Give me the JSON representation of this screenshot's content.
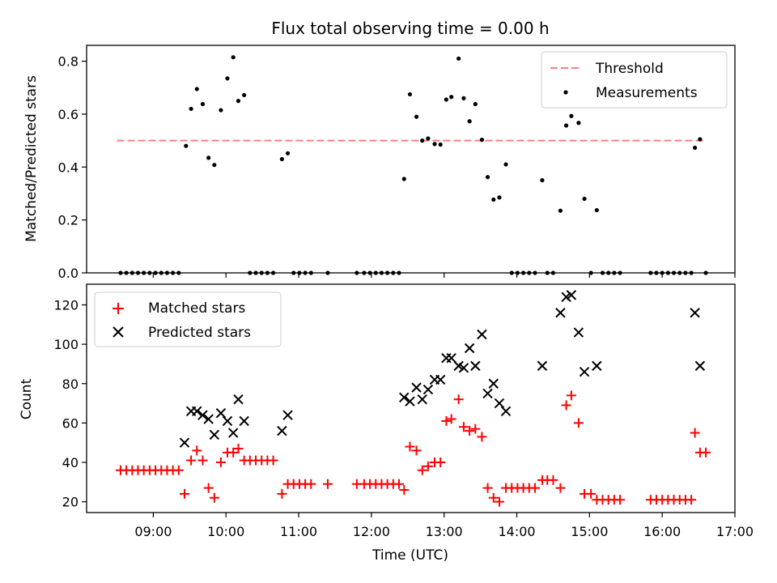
{
  "chart_data": {
    "type": "scatter",
    "title": "Flux total observing time = 0.00 h",
    "xlabel": "Time (UTC)",
    "xlim_hours": [
      8.083,
      17.0
    ],
    "xticks": [
      {
        "v": 9,
        "label": "09:00"
      },
      {
        "v": 10,
        "label": "10:00"
      },
      {
        "v": 11,
        "label": "11:00"
      },
      {
        "v": 12,
        "label": "12:00"
      },
      {
        "v": 13,
        "label": "13:00"
      },
      {
        "v": 14,
        "label": "14:00"
      },
      {
        "v": 15,
        "label": "15:00"
      },
      {
        "v": 16,
        "label": "16:00"
      },
      {
        "v": 17,
        "label": "17:00"
      }
    ],
    "top": {
      "ylabel": "Matched/Predicted stars",
      "ylim": [
        0,
        0.86
      ],
      "yticks": [
        {
          "v": 0.0,
          "label": "0.0"
        },
        {
          "v": 0.2,
          "label": "0.2"
        },
        {
          "v": 0.4,
          "label": "0.4"
        },
        {
          "v": 0.6,
          "label": "0.6"
        },
        {
          "v": 0.8,
          "label": "0.8"
        }
      ],
      "threshold": {
        "name": "Threshold",
        "y": 0.5,
        "x": [
          8.5,
          16.6
        ],
        "color": "#ff7f7f"
      },
      "measurements_name": "Measurements",
      "measurements": [
        [
          8.55,
          0
        ],
        [
          8.63,
          0
        ],
        [
          8.71,
          0
        ],
        [
          8.79,
          0
        ],
        [
          8.87,
          0
        ],
        [
          8.95,
          0
        ],
        [
          9.03,
          0
        ],
        [
          9.11,
          0
        ],
        [
          9.19,
          0
        ],
        [
          9.27,
          0
        ],
        [
          9.35,
          0
        ],
        [
          9.45,
          0.48
        ],
        [
          9.52,
          0.62
        ],
        [
          9.6,
          0.695
        ],
        [
          9.68,
          0.638
        ],
        [
          9.76,
          0.435
        ],
        [
          9.84,
          0.408
        ],
        [
          9.93,
          0.615
        ],
        [
          10.02,
          0.735
        ],
        [
          10.1,
          0.815
        ],
        [
          10.17,
          0.65
        ],
        [
          10.25,
          0.672
        ],
        [
          10.33,
          0
        ],
        [
          10.41,
          0
        ],
        [
          10.49,
          0
        ],
        [
          10.57,
          0
        ],
        [
          10.65,
          0
        ],
        [
          10.77,
          0.43
        ],
        [
          10.85,
          0.452
        ],
        [
          10.93,
          0
        ],
        [
          11.01,
          0
        ],
        [
          11.09,
          0
        ],
        [
          11.17,
          0
        ],
        [
          11.4,
          0
        ],
        [
          11.8,
          0
        ],
        [
          11.9,
          0
        ],
        [
          11.98,
          0
        ],
        [
          12.06,
          0
        ],
        [
          12.14,
          0
        ],
        [
          12.22,
          0
        ],
        [
          12.3,
          0
        ],
        [
          12.38,
          0
        ],
        [
          12.45,
          0.355
        ],
        [
          12.53,
          0.675
        ],
        [
          12.62,
          0.59
        ],
        [
          12.7,
          0.5
        ],
        [
          12.78,
          0.508
        ],
        [
          12.87,
          0.487
        ],
        [
          12.95,
          0.485
        ],
        [
          13.03,
          0.655
        ],
        [
          13.1,
          0.665
        ],
        [
          13.2,
          0.81
        ],
        [
          13.27,
          0.66
        ],
        [
          13.35,
          0.573
        ],
        [
          13.43,
          0.638
        ],
        [
          13.52,
          0.503
        ],
        [
          13.6,
          0.362
        ],
        [
          13.68,
          0.277
        ],
        [
          13.76,
          0.285
        ],
        [
          13.85,
          0.41
        ],
        [
          13.93,
          0
        ],
        [
          14.01,
          0
        ],
        [
          14.09,
          0
        ],
        [
          14.17,
          0
        ],
        [
          14.25,
          0
        ],
        [
          14.35,
          0.35
        ],
        [
          14.42,
          0
        ],
        [
          14.5,
          0
        ],
        [
          14.6,
          0.235
        ],
        [
          14.68,
          0.557
        ],
        [
          14.75,
          0.593
        ],
        [
          14.85,
          0.567
        ],
        [
          14.93,
          0.28
        ],
        [
          15.02,
          0
        ],
        [
          15.1,
          0.237
        ],
        [
          15.18,
          0
        ],
        [
          15.26,
          0
        ],
        [
          15.34,
          0
        ],
        [
          15.42,
          0
        ],
        [
          15.84,
          0
        ],
        [
          15.92,
          0
        ],
        [
          16.0,
          0
        ],
        [
          16.08,
          0
        ],
        [
          16.16,
          0
        ],
        [
          16.24,
          0
        ],
        [
          16.32,
          0
        ],
        [
          16.4,
          0
        ],
        [
          16.45,
          0.473
        ],
        [
          16.52,
          0.505
        ],
        [
          16.6,
          0
        ]
      ]
    },
    "bottom": {
      "ylabel": "Count",
      "ylim": [
        14.5,
        130.5
      ],
      "yticks": [
        {
          "v": 20,
          "label": "20"
        },
        {
          "v": 40,
          "label": "40"
        },
        {
          "v": 60,
          "label": "60"
        },
        {
          "v": 80,
          "label": "80"
        },
        {
          "v": 100,
          "label": "100"
        },
        {
          "v": 120,
          "label": "120"
        }
      ],
      "series": [
        {
          "name": "Matched stars",
          "marker": "+",
          "color": "#ff0000",
          "points": [
            [
              8.55,
              36
            ],
            [
              8.63,
              36
            ],
            [
              8.71,
              36
            ],
            [
              8.79,
              36
            ],
            [
              8.87,
              36
            ],
            [
              8.95,
              36
            ],
            [
              9.03,
              36
            ],
            [
              9.11,
              36
            ],
            [
              9.19,
              36
            ],
            [
              9.27,
              36
            ],
            [
              9.35,
              36
            ],
            [
              9.43,
              24
            ],
            [
              9.52,
              41
            ],
            [
              9.6,
              46
            ],
            [
              9.68,
              41
            ],
            [
              9.76,
              27
            ],
            [
              9.84,
              22
            ],
            [
              9.93,
              40
            ],
            [
              10.02,
              45
            ],
            [
              10.1,
              45
            ],
            [
              10.17,
              47
            ],
            [
              10.25,
              41
            ],
            [
              10.33,
              41
            ],
            [
              10.41,
              41
            ],
            [
              10.49,
              41
            ],
            [
              10.57,
              41
            ],
            [
              10.65,
              41
            ],
            [
              10.77,
              24
            ],
            [
              10.85,
              29
            ],
            [
              10.93,
              29
            ],
            [
              11.01,
              29
            ],
            [
              11.09,
              29
            ],
            [
              11.17,
              29
            ],
            [
              11.4,
              29
            ],
            [
              11.8,
              29
            ],
            [
              11.9,
              29
            ],
            [
              11.98,
              29
            ],
            [
              12.06,
              29
            ],
            [
              12.14,
              29
            ],
            [
              12.22,
              29
            ],
            [
              12.3,
              29
            ],
            [
              12.38,
              29
            ],
            [
              12.45,
              26
            ],
            [
              12.53,
              48
            ],
            [
              12.62,
              46
            ],
            [
              12.7,
              36
            ],
            [
              12.78,
              38
            ],
            [
              12.87,
              40
            ],
            [
              12.95,
              40
            ],
            [
              13.03,
              61
            ],
            [
              13.1,
              62
            ],
            [
              13.2,
              72
            ],
            [
              13.27,
              58
            ],
            [
              13.35,
              56
            ],
            [
              13.43,
              57
            ],
            [
              13.52,
              53
            ],
            [
              13.6,
              27
            ],
            [
              13.68,
              22
            ],
            [
              13.76,
              20
            ],
            [
              13.85,
              27
            ],
            [
              13.93,
              27
            ],
            [
              14.01,
              27
            ],
            [
              14.09,
              27
            ],
            [
              14.17,
              27
            ],
            [
              14.25,
              27
            ],
            [
              14.35,
              31
            ],
            [
              14.42,
              31
            ],
            [
              14.5,
              31
            ],
            [
              14.6,
              27
            ],
            [
              14.68,
              69
            ],
            [
              14.75,
              74
            ],
            [
              14.85,
              60
            ],
            [
              14.93,
              24
            ],
            [
              15.02,
              24
            ],
            [
              15.1,
              21
            ],
            [
              15.18,
              21
            ],
            [
              15.26,
              21
            ],
            [
              15.34,
              21
            ],
            [
              15.42,
              21
            ],
            [
              15.84,
              21
            ],
            [
              15.92,
              21
            ],
            [
              16.0,
              21
            ],
            [
              16.08,
              21
            ],
            [
              16.16,
              21
            ],
            [
              16.24,
              21
            ],
            [
              16.32,
              21
            ],
            [
              16.4,
              21
            ],
            [
              16.45,
              55
            ],
            [
              16.52,
              45
            ],
            [
              16.6,
              45
            ]
          ]
        },
        {
          "name": "Predicted stars",
          "marker": "x",
          "color": "#000000",
          "points": [
            [
              9.43,
              50
            ],
            [
              9.52,
              66
            ],
            [
              9.6,
              66
            ],
            [
              9.68,
              64
            ],
            [
              9.76,
              62
            ],
            [
              9.84,
              54
            ],
            [
              9.93,
              65
            ],
            [
              10.02,
              61
            ],
            [
              10.1,
              55
            ],
            [
              10.17,
              72
            ],
            [
              10.25,
              61
            ],
            [
              10.77,
              56
            ],
            [
              10.85,
              64
            ],
            [
              12.45,
              73
            ],
            [
              12.53,
              71
            ],
            [
              12.62,
              78
            ],
            [
              12.7,
              72
            ],
            [
              12.78,
              77
            ],
            [
              12.87,
              82
            ],
            [
              12.95,
              82
            ],
            [
              13.03,
              93
            ],
            [
              13.1,
              93
            ],
            [
              13.2,
              89
            ],
            [
              13.27,
              88
            ],
            [
              13.35,
              98
            ],
            [
              13.43,
              89
            ],
            [
              13.52,
              105
            ],
            [
              13.6,
              75
            ],
            [
              13.68,
              80
            ],
            [
              13.76,
              70
            ],
            [
              13.85,
              66
            ],
            [
              14.35,
              89
            ],
            [
              14.6,
              116
            ],
            [
              14.68,
              124
            ],
            [
              14.75,
              125
            ],
            [
              14.85,
              106
            ],
            [
              14.93,
              86
            ],
            [
              15.1,
              89
            ],
            [
              16.45,
              116
            ],
            [
              16.52,
              89
            ]
          ]
        }
      ]
    }
  }
}
